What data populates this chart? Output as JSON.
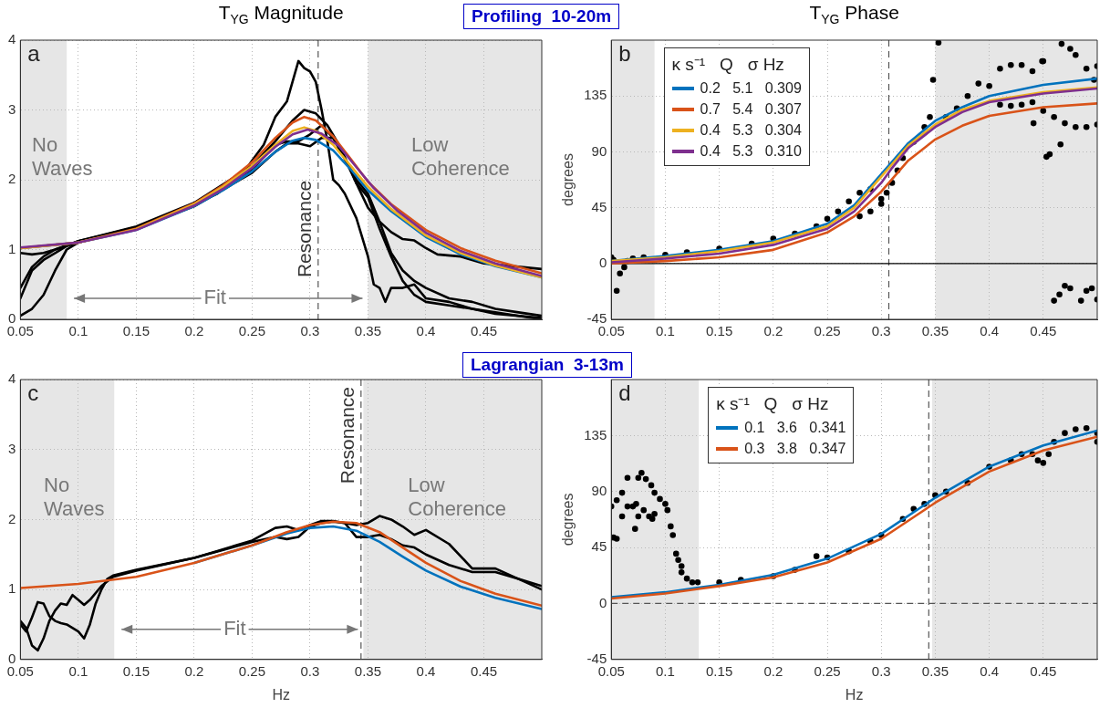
{
  "chart_data": [
    {
      "type": "line",
      "title": "T$_{YG}$ Magnitude",
      "subtitle": "Profiling  10-20m",
      "xlim": [
        0.05,
        0.5
      ],
      "xticks": [
        0.05,
        0.1,
        0.15,
        0.2,
        0.25,
        0.3,
        0.35,
        0.4,
        0.45
      ],
      "ylim": [
        0,
        4
      ],
      "yticks": [
        0,
        1,
        2,
        3,
        4
      ],
      "grid": true,
      "legend": false,
      "bands": [
        {
          "axis": "x",
          "from": 0.05,
          "to": 0.09,
          "label": "No Waves",
          "color": "#e6e6e6"
        },
        {
          "axis": "x",
          "from": 0.35,
          "to": 0.5,
          "label": "Low Coherence",
          "color": "#e6e6e6"
        }
      ],
      "ref_lines": [
        {
          "axis": "x",
          "value": 0.307,
          "label": "Resonance",
          "color": "#555555",
          "line_style": "dashed"
        }
      ],
      "annotations": [
        "a",
        {
          "text": "Fit",
          "x": 0.218,
          "y": 0.3
        }
      ],
      "series": [
        {
          "color": "#000000",
          "x": [
            0.05,
            0.06,
            0.07,
            0.08,
            0.09,
            0.1,
            0.12,
            0.15,
            0.18,
            0.2,
            0.22,
            0.24,
            0.26,
            0.27,
            0.28,
            0.29,
            0.295,
            0.3,
            0.305,
            0.31,
            0.315,
            0.32,
            0.325,
            0.33,
            0.34,
            0.35,
            0.355,
            0.36,
            0.365,
            0.37,
            0.38,
            0.39,
            0.4,
            0.42,
            0.44,
            0.46,
            0.48,
            0.5
          ],
          "values": [
            0.3,
            0.7,
            0.85,
            0.95,
            1.05,
            1.12,
            1.2,
            1.32,
            1.5,
            1.65,
            1.8,
            2.05,
            2.5,
            2.9,
            3.12,
            3.7,
            3.6,
            3.55,
            3.4,
            3.0,
            2.55,
            2.0,
            1.92,
            1.8,
            1.45,
            0.9,
            0.5,
            0.45,
            0.25,
            0.45,
            0.45,
            0.5,
            0.3,
            0.25,
            0.15,
            0.1,
            0.05,
            0.0
          ]
        },
        {
          "color": "#000000",
          "x": [
            0.05,
            0.06,
            0.07,
            0.08,
            0.1,
            0.15,
            0.2,
            0.25,
            0.27,
            0.285,
            0.295,
            0.305,
            0.315,
            0.325,
            0.335,
            0.34,
            0.35,
            0.36,
            0.37,
            0.38,
            0.39,
            0.4,
            0.41,
            0.43,
            0.45,
            0.47,
            0.5
          ],
          "values": [
            0.95,
            0.93,
            0.95,
            1.0,
            1.12,
            1.33,
            1.67,
            2.2,
            2.55,
            2.85,
            3.0,
            2.95,
            2.78,
            2.5,
            2.15,
            1.95,
            1.6,
            1.4,
            1.25,
            1.15,
            1.13,
            1.02,
            0.93,
            0.9,
            0.8,
            0.77,
            0.72
          ]
        },
        {
          "color": "#000000",
          "x": [
            0.05,
            0.06,
            0.07,
            0.08,
            0.1,
            0.15,
            0.2,
            0.25,
            0.27,
            0.28,
            0.29,
            0.3,
            0.31,
            0.32,
            0.33,
            0.34,
            0.35,
            0.36,
            0.37,
            0.38,
            0.39,
            0.4,
            0.42,
            0.44,
            0.46,
            0.5
          ],
          "values": [
            0.45,
            0.75,
            0.9,
            1.0,
            1.1,
            1.32,
            1.65,
            2.15,
            2.5,
            2.55,
            2.55,
            2.65,
            2.78,
            2.6,
            2.3,
            1.95,
            1.75,
            1.3,
            0.9,
            0.55,
            0.35,
            0.25,
            0.2,
            0.15,
            0.08,
            0.02
          ]
        },
        {
          "color": "#000000",
          "x": [
            0.05,
            0.06,
            0.07,
            0.08,
            0.09,
            0.1,
            0.15,
            0.2,
            0.25,
            0.27,
            0.28,
            0.29,
            0.3,
            0.31,
            0.32,
            0.33,
            0.34,
            0.35,
            0.36,
            0.37,
            0.38,
            0.39,
            0.4,
            0.42,
            0.44,
            0.46,
            0.48,
            0.5
          ],
          "values": [
            0.05,
            0.15,
            0.35,
            0.7,
            1.0,
            1.1,
            1.3,
            1.62,
            2.1,
            2.4,
            2.52,
            2.52,
            2.48,
            2.6,
            2.6,
            2.3,
            2.0,
            1.8,
            1.4,
            0.95,
            0.7,
            0.55,
            0.45,
            0.3,
            0.25,
            0.15,
            0.1,
            0.05
          ]
        },
        {
          "color": "#0072bd",
          "x": [
            0.05,
            0.1,
            0.15,
            0.2,
            0.225,
            0.25,
            0.27,
            0.285,
            0.295,
            0.305,
            0.32,
            0.335,
            0.35,
            0.37,
            0.4,
            0.43,
            0.46,
            0.5
          ],
          "values": [
            1.02,
            1.1,
            1.28,
            1.62,
            1.85,
            2.12,
            2.4,
            2.56,
            2.6,
            2.57,
            2.42,
            2.15,
            1.85,
            1.55,
            1.18,
            0.93,
            0.76,
            0.6
          ]
        },
        {
          "color": "#d95319",
          "x": [
            0.05,
            0.1,
            0.15,
            0.2,
            0.225,
            0.25,
            0.27,
            0.285,
            0.295,
            0.305,
            0.32,
            0.335,
            0.35,
            0.37,
            0.4,
            0.43,
            0.46,
            0.5
          ],
          "values": [
            1.02,
            1.1,
            1.3,
            1.66,
            1.92,
            2.25,
            2.6,
            2.82,
            2.9,
            2.85,
            2.62,
            2.3,
            1.97,
            1.65,
            1.28,
            1.02,
            0.84,
            0.66
          ]
        },
        {
          "color": "#edb120",
          "x": [
            0.05,
            0.1,
            0.15,
            0.2,
            0.225,
            0.25,
            0.27,
            0.285,
            0.295,
            0.305,
            0.32,
            0.335,
            0.35,
            0.37,
            0.4,
            0.43,
            0.46,
            0.5
          ],
          "values": [
            1.02,
            1.1,
            1.29,
            1.65,
            1.9,
            2.2,
            2.5,
            2.7,
            2.75,
            2.7,
            2.5,
            2.2,
            1.9,
            1.58,
            1.2,
            0.95,
            0.77,
            0.6
          ]
        },
        {
          "color": "#7e2f8e",
          "x": [
            0.05,
            0.1,
            0.15,
            0.2,
            0.225,
            0.25,
            0.27,
            0.285,
            0.298,
            0.31,
            0.325,
            0.34,
            0.355,
            0.375,
            0.4,
            0.43,
            0.46,
            0.5
          ],
          "values": [
            1.03,
            1.1,
            1.28,
            1.63,
            1.87,
            2.17,
            2.47,
            2.65,
            2.72,
            2.66,
            2.48,
            2.18,
            1.88,
            1.56,
            1.24,
            0.98,
            0.8,
            0.62
          ]
        }
      ]
    },
    {
      "type": "line",
      "title": "T$_{YG}$ Phase",
      "ylabel": "degrees",
      "xlim": [
        0.05,
        0.5
      ],
      "xticks": [
        0.05,
        0.1,
        0.15,
        0.2,
        0.25,
        0.3,
        0.35,
        0.4,
        0.45
      ],
      "ylim": [
        -45,
        180
      ],
      "yticks": [
        -45,
        0,
        45,
        90,
        135
      ],
      "grid": true,
      "legend": "top left",
      "legend_title": "κ s⁻¹   Q   σ Hz",
      "bands": [
        {
          "axis": "x",
          "from": 0.05,
          "to": 0.09,
          "color": "#e6e6e6"
        },
        {
          "axis": "x",
          "from": 0.35,
          "to": 0.5,
          "color": "#e6e6e6"
        }
      ],
      "ref_lines": [
        {
          "axis": "x",
          "value": 0.307,
          "color": "#555555",
          "line_style": "dashed"
        },
        {
          "axis": "y",
          "value": 0,
          "color": "#000000",
          "line_style": "solid"
        }
      ],
      "annotations": [
        "b"
      ],
      "series": [
        {
          "type": "scatter",
          "marker": "circle",
          "color": "#000000",
          "x": [
            0.05,
            0.052,
            0.055,
            0.058,
            0.062,
            0.065,
            0.07,
            0.08,
            0.1,
            0.12,
            0.15,
            0.18,
            0.2,
            0.22,
            0.24,
            0.25,
            0.26,
            0.27,
            0.28,
            0.28,
            0.29,
            0.29,
            0.3,
            0.3,
            0.305,
            0.31,
            0.315,
            0.32,
            0.33,
            0.34,
            0.345,
            0.348,
            0.353,
            0.36,
            0.37,
            0.38,
            0.39,
            0.4,
            0.41,
            0.42,
            0.43,
            0.44,
            0.45,
            0.41,
            0.42,
            0.43,
            0.44,
            0.441,
            0.449,
            0.45,
            0.453,
            0.456,
            0.46,
            0.466,
            0.467,
            0.47,
            0.475,
            0.48,
            0.48,
            0.49,
            0.49,
            0.497,
            0.5,
            0.5,
            0.46,
            0.465,
            0.47,
            0.475,
            0.485,
            0.49,
            0.495,
            0.5
          ],
          "values": [
            5,
            3,
            -22,
            -8,
            -3,
            2,
            4,
            5,
            7,
            9,
            12,
            16,
            20,
            24,
            30,
            36,
            42,
            50,
            57,
            38,
            60,
            42,
            48,
            52,
            57,
            65,
            75,
            85,
            98,
            110,
            118,
            148,
            178,
            118,
            125,
            135,
            145,
            143,
            157,
            160,
            160,
            155,
            163,
            128,
            127,
            128,
            130,
            113,
            163,
            123,
            86,
            88,
            118,
            96,
            177,
            113,
            173,
            110,
            168,
            110,
            157,
            148,
            112,
            159,
            -30,
            -25,
            -18,
            -20,
            -30,
            -22,
            -20,
            -29
          ]
        },
        {
          "name": "0.2   5.1   0.309",
          "color": "#0072bd",
          "x": [
            0.05,
            0.1,
            0.15,
            0.2,
            0.25,
            0.275,
            0.3,
            0.31,
            0.325,
            0.35,
            0.375,
            0.4,
            0.45,
            0.5
          ],
          "values": [
            2,
            6,
            11,
            18,
            32,
            47,
            72,
            82,
            97,
            115,
            126,
            135,
            144,
            149
          ]
        },
        {
          "name": "0.7   5.4   0.307",
          "color": "#d95319",
          "x": [
            0.05,
            0.1,
            0.15,
            0.2,
            0.25,
            0.275,
            0.3,
            0.31,
            0.325,
            0.35,
            0.375,
            0.4,
            0.45,
            0.5
          ],
          "values": [
            0,
            2,
            5,
            11,
            25,
            38,
            58,
            68,
            83,
            100,
            111,
            119,
            126,
            129
          ]
        },
        {
          "name": "0.4   5.3   0.304",
          "color": "#edb120",
          "x": [
            0.05,
            0.1,
            0.15,
            0.2,
            0.25,
            0.275,
            0.3,
            0.31,
            0.325,
            0.35,
            0.375,
            0.4,
            0.45,
            0.5
          ],
          "values": [
            2,
            5,
            10,
            17,
            30,
            45,
            70,
            80,
            95,
            112,
            124,
            131,
            138,
            142
          ]
        },
        {
          "name": "0.4   5.3   0.310",
          "color": "#7e2f8e",
          "x": [
            0.05,
            0.1,
            0.15,
            0.2,
            0.25,
            0.275,
            0.3,
            0.31,
            0.325,
            0.35,
            0.375,
            0.4,
            0.45,
            0.5
          ],
          "values": [
            1,
            4,
            8,
            15,
            28,
            42,
            65,
            77,
            93,
            110,
            122,
            130,
            137,
            141
          ]
        }
      ]
    },
    {
      "type": "line",
      "subtitle": "Lagrangian  3-13m",
      "xlabel": "Hz",
      "xlim": [
        0.05,
        0.5
      ],
      "xticks": [
        0.05,
        0.1,
        0.15,
        0.2,
        0.25,
        0.3,
        0.35,
        0.4,
        0.45
      ],
      "ylim": [
        0,
        4
      ],
      "yticks": [
        0,
        1,
        2,
        3,
        4
      ],
      "grid": true,
      "legend": false,
      "bands": [
        {
          "axis": "x",
          "from": 0.05,
          "to": 0.131,
          "label": "No Waves",
          "color": "#e6e6e6"
        },
        {
          "axis": "x",
          "from": 0.346,
          "to": 0.5,
          "label": "Low Coherence",
          "color": "#e6e6e6"
        }
      ],
      "ref_lines": [
        {
          "axis": "x",
          "value": 0.344,
          "label": "Resonance",
          "color": "#555555",
          "line_style": "dashed"
        }
      ],
      "annotations": [
        "c",
        {
          "text": "Fit",
          "x": 0.235,
          "y": 0.43
        }
      ],
      "series": [
        {
          "color": "#000000",
          "x": [
            0.05,
            0.055,
            0.06,
            0.065,
            0.07,
            0.075,
            0.08,
            0.085,
            0.09,
            0.1,
            0.105,
            0.11,
            0.115,
            0.12,
            0.125,
            0.13,
            0.15,
            0.2,
            0.22,
            0.25,
            0.27,
            0.28,
            0.29,
            0.3,
            0.31,
            0.32,
            0.33,
            0.34,
            0.35,
            0.36,
            0.37,
            0.38,
            0.39,
            0.4,
            0.42,
            0.44,
            0.46,
            0.48,
            0.5
          ],
          "values": [
            0.5,
            0.4,
            0.6,
            0.82,
            0.8,
            0.62,
            0.55,
            0.52,
            0.5,
            0.4,
            0.3,
            0.5,
            0.8,
            1.0,
            1.15,
            1.2,
            1.28,
            1.45,
            1.55,
            1.7,
            1.88,
            1.9,
            1.85,
            1.92,
            1.98,
            1.98,
            1.95,
            1.75,
            1.75,
            1.78,
            1.72,
            1.63,
            1.6,
            1.5,
            1.35,
            1.25,
            1.25,
            1.15,
            1.05
          ]
        },
        {
          "color": "#000000",
          "x": [
            0.05,
            0.055,
            0.06,
            0.065,
            0.07,
            0.075,
            0.08,
            0.085,
            0.09,
            0.095,
            0.1,
            0.105,
            0.11,
            0.12,
            0.13,
            0.15,
            0.2,
            0.25,
            0.27,
            0.28,
            0.29,
            0.3,
            0.31,
            0.32,
            0.33,
            0.34,
            0.35,
            0.36,
            0.37,
            0.38,
            0.39,
            0.4,
            0.42,
            0.44,
            0.46,
            0.48,
            0.5
          ],
          "values": [
            0.55,
            0.45,
            0.2,
            0.13,
            0.3,
            0.55,
            0.7,
            0.8,
            0.78,
            0.92,
            0.85,
            0.78,
            0.85,
            1.05,
            1.18,
            1.27,
            1.45,
            1.68,
            1.75,
            1.72,
            1.75,
            1.9,
            1.95,
            1.97,
            1.95,
            1.92,
            1.95,
            2.05,
            2.0,
            1.9,
            1.78,
            1.85,
            1.65,
            1.3,
            1.3,
            1.15,
            1.0
          ]
        },
        {
          "color": "#0072bd",
          "x": [
            0.2,
            0.25,
            0.28,
            0.3,
            0.32,
            0.34,
            0.36,
            0.38,
            0.4,
            0.43,
            0.46,
            0.5
          ],
          "values": [
            1.38,
            1.63,
            1.8,
            1.88,
            1.9,
            1.84,
            1.68,
            1.47,
            1.27,
            1.04,
            0.88,
            0.72
          ]
        },
        {
          "color": "#d95319",
          "x": [
            0.05,
            0.1,
            0.15,
            0.2,
            0.25,
            0.28,
            0.3,
            0.32,
            0.34,
            0.36,
            0.38,
            0.4,
            0.43,
            0.46,
            0.5
          ],
          "values": [
            1.02,
            1.08,
            1.18,
            1.38,
            1.63,
            1.82,
            1.92,
            1.97,
            1.95,
            1.82,
            1.6,
            1.38,
            1.12,
            0.94,
            0.77
          ]
        }
      ]
    },
    {
      "type": "line",
      "xlabel": "Hz",
      "ylabel": "degrees",
      "xlim": [
        0.05,
        0.5
      ],
      "xticks": [
        0.05,
        0.1,
        0.15,
        0.2,
        0.25,
        0.3,
        0.35,
        0.4,
        0.45
      ],
      "ylim": [
        -45,
        180
      ],
      "yticks": [
        -45,
        0,
        45,
        90,
        135
      ],
      "grid": true,
      "legend": "top left",
      "legend_title": "κ s⁻¹   Q   σ Hz",
      "bands": [
        {
          "axis": "x",
          "from": 0.05,
          "to": 0.131,
          "color": "#e6e6e6"
        },
        {
          "axis": "x",
          "from": 0.347,
          "to": 0.5,
          "color": "#e6e6e6"
        }
      ],
      "ref_lines": [
        {
          "axis": "x",
          "value": 0.344,
          "color": "#555555",
          "line_style": "dashed"
        },
        {
          "axis": "y",
          "value": 0,
          "color": "#555555",
          "line_style": "dashed"
        }
      ],
      "annotations": [
        "d"
      ],
      "series": [
        {
          "type": "scatter",
          "marker": "circle",
          "color": "#000000",
          "x": [
            0.05,
            0.052,
            0.055,
            0.055,
            0.06,
            0.06,
            0.065,
            0.065,
            0.07,
            0.072,
            0.073,
            0.075,
            0.075,
            0.078,
            0.08,
            0.082,
            0.085,
            0.087,
            0.088,
            0.09,
            0.09,
            0.095,
            0.1,
            0.102,
            0.105,
            0.107,
            0.11,
            0.112,
            0.115,
            0.115,
            0.12,
            0.125,
            0.13,
            0.15,
            0.17,
            0.2,
            0.22,
            0.24,
            0.25,
            0.27,
            0.29,
            0.3,
            0.32,
            0.33,
            0.34,
            0.35,
            0.36,
            0.38,
            0.4,
            0.42,
            0.43,
            0.44,
            0.445,
            0.45,
            0.455,
            0.46,
            0.47,
            0.48,
            0.49,
            0.5,
            0.5
          ],
          "values": [
            78,
            53,
            52,
            83,
            89,
            70,
            101,
            78,
            78,
            60,
            80,
            101,
            70,
            105,
            75,
            100,
            70,
            95,
            68,
            72,
            89,
            84,
            80,
            75,
            62,
            55,
            40,
            35,
            30,
            25,
            20,
            17,
            17,
            17,
            19,
            22,
            27,
            38,
            37,
            42,
            50,
            55,
            68,
            76,
            80,
            87,
            90,
            97,
            110,
            115,
            120,
            120,
            115,
            113,
            120,
            130,
            137,
            140,
            141,
            137,
            130
          ]
        },
        {
          "name": "0.1   3.6   0.341",
          "color": "#0072bd",
          "x": [
            0.05,
            0.1,
            0.15,
            0.2,
            0.25,
            0.3,
            0.35,
            0.4,
            0.45,
            0.5
          ],
          "values": [
            5,
            9,
            15,
            23,
            36,
            56,
            85,
            110,
            127,
            139
          ]
        },
        {
          "name": "0.3   3.8   0.347",
          "color": "#d95319",
          "x": [
            0.05,
            0.1,
            0.15,
            0.2,
            0.25,
            0.3,
            0.35,
            0.4,
            0.45,
            0.5
          ],
          "values": [
            4,
            8,
            14,
            21,
            33,
            52,
            81,
            106,
            123,
            134
          ]
        }
      ]
    }
  ]
}
